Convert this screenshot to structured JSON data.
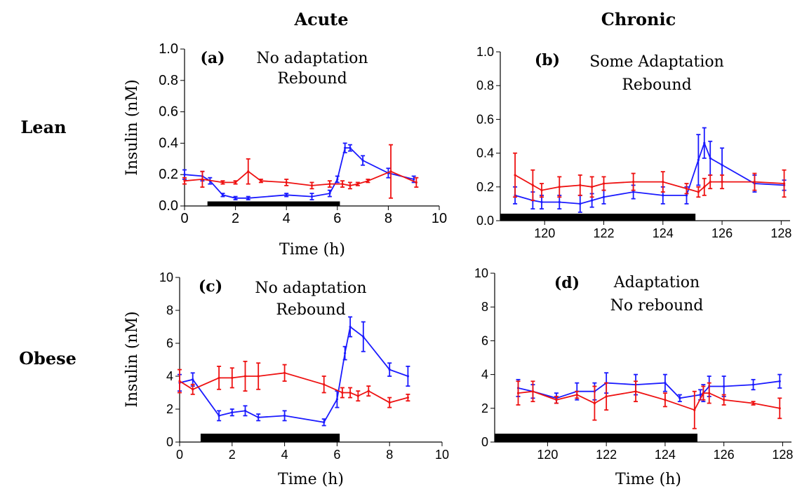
{
  "headers": {
    "col1": "Acute",
    "col2": "Chronic",
    "row1": "Lean",
    "row2": "Obese"
  },
  "colors": {
    "blue": "#1a1aff",
    "red": "#ee1111",
    "bar": "#000000"
  },
  "chart_data": [
    {
      "id": "a",
      "type": "line",
      "panel_label": "(a)",
      "annotation_line1": "No adaptation",
      "annotation_line2": "Rebound",
      "xlabel": "Time (h)",
      "ylabel": "Insulin (nM)",
      "xlim": [
        0,
        10
      ],
      "ylim": [
        0,
        1.0
      ],
      "xticks": [
        0,
        2,
        4,
        6,
        8,
        10
      ],
      "yticks": [
        0.0,
        0.2,
        0.4,
        0.6,
        0.8,
        1.0
      ],
      "xtick_labels": [
        "0",
        "2",
        "4",
        "6",
        "8",
        "10"
      ],
      "ytick_labels": [
        "0.0",
        "0.2",
        "0.4",
        "0.6",
        "0.8",
        "1.0"
      ],
      "treatment_bar": [
        0.9,
        6.1
      ],
      "series": [
        {
          "color": "blue",
          "points": [
            [
              0,
              0.2,
              0.03
            ],
            [
              0.7,
              0.19,
              0.03
            ],
            [
              1.0,
              0.16,
              0.02
            ],
            [
              1.5,
              0.07,
              0.01
            ],
            [
              2.0,
              0.05,
              0.01
            ],
            [
              2.5,
              0.05,
              0.01
            ],
            [
              4.0,
              0.07,
              0.01
            ],
            [
              5.0,
              0.06,
              0.02
            ],
            [
              5.7,
              0.08,
              0.02
            ],
            [
              6.0,
              0.17,
              0.02
            ],
            [
              6.3,
              0.37,
              0.03
            ],
            [
              6.5,
              0.37,
              0.02
            ],
            [
              7.0,
              0.29,
              0.03
            ],
            [
              8.0,
              0.21,
              0.03
            ],
            [
              9.0,
              0.17,
              0.02
            ]
          ]
        },
        {
          "color": "red",
          "points": [
            [
              0,
              0.16,
              0.02
            ],
            [
              0.7,
              0.17,
              0.05
            ],
            [
              1.5,
              0.15,
              0.01
            ],
            [
              2.0,
              0.15,
              0.01
            ],
            [
              2.5,
              0.22,
              0.08
            ],
            [
              3.0,
              0.16,
              0.01
            ],
            [
              4.0,
              0.15,
              0.02
            ],
            [
              5.0,
              0.13,
              0.02
            ],
            [
              5.7,
              0.14,
              0.02
            ],
            [
              6.2,
              0.14,
              0.02
            ],
            [
              6.5,
              0.13,
              0.02
            ],
            [
              6.8,
              0.14,
              0.01
            ],
            [
              7.2,
              0.16,
              0.01
            ],
            [
              8.1,
              0.22,
              0.17
            ],
            [
              9.1,
              0.15,
              0.03
            ]
          ]
        }
      ]
    },
    {
      "id": "b",
      "type": "line",
      "panel_label": "(b)",
      "annotation_line1": "Some Adaptation",
      "annotation_line2": "Rebound",
      "xlabel": "",
      "ylabel": "",
      "xlim": [
        118.5,
        128.3
      ],
      "ylim": [
        0,
        1.0
      ],
      "xticks": [
        120,
        122,
        124,
        126,
        128
      ],
      "yticks": [
        0.0,
        0.2,
        0.4,
        0.6,
        0.8,
        1.0
      ],
      "xtick_labels": [
        "120",
        "122",
        "124",
        "126",
        "128"
      ],
      "ytick_labels": [
        "0.0",
        "0.2",
        "0.4",
        "0.6",
        "0.8",
        "1.0"
      ],
      "treatment_bar": [
        118.5,
        125.1
      ],
      "series": [
        {
          "color": "blue",
          "points": [
            [
              119.0,
              0.15,
              0.05
            ],
            [
              119.6,
              0.12,
              0.05
            ],
            [
              119.9,
              0.11,
              0.04
            ],
            [
              120.5,
              0.11,
              0.04
            ],
            [
              121.2,
              0.1,
              0.05
            ],
            [
              121.6,
              0.12,
              0.04
            ],
            [
              122.0,
              0.14,
              0.04
            ],
            [
              123.0,
              0.17,
              0.04
            ],
            [
              124.0,
              0.15,
              0.05
            ],
            [
              124.8,
              0.15,
              0.05
            ],
            [
              125.2,
              0.36,
              0.15
            ],
            [
              125.4,
              0.46,
              0.09
            ],
            [
              125.6,
              0.37,
              0.1
            ],
            [
              126.0,
              0.33,
              0.1
            ],
            [
              127.1,
              0.22,
              0.05
            ],
            [
              128.1,
              0.21,
              0.03
            ]
          ]
        },
        {
          "color": "red",
          "points": [
            [
              119.0,
              0.27,
              0.13
            ],
            [
              119.6,
              0.21,
              0.09
            ],
            [
              119.9,
              0.18,
              0.04
            ],
            [
              120.5,
              0.2,
              0.06
            ],
            [
              121.2,
              0.21,
              0.06
            ],
            [
              121.6,
              0.2,
              0.06
            ],
            [
              122.0,
              0.22,
              0.04
            ],
            [
              123.0,
              0.23,
              0.05
            ],
            [
              124.0,
              0.23,
              0.06
            ],
            [
              124.8,
              0.19,
              0.03
            ],
            [
              125.2,
              0.17,
              0.03
            ],
            [
              125.4,
              0.2,
              0.05
            ],
            [
              125.6,
              0.23,
              0.04
            ],
            [
              126.0,
              0.23,
              0.04
            ],
            [
              127.1,
              0.23,
              0.05
            ],
            [
              128.1,
              0.22,
              0.08
            ]
          ]
        }
      ]
    },
    {
      "id": "c",
      "type": "line",
      "panel_label": "(c)",
      "annotation_line1": "No adaptation",
      "annotation_line2": "Rebound",
      "xlabel": "Time (h)",
      "ylabel": "Insulin (nM)",
      "xlim": [
        0,
        10
      ],
      "ylim": [
        0,
        10
      ],
      "xticks": [
        0,
        2,
        4,
        6,
        8,
        10
      ],
      "yticks": [
        0,
        2,
        4,
        6,
        8,
        10
      ],
      "xtick_labels": [
        "0",
        "2",
        "4",
        "6",
        "8",
        "10"
      ],
      "ytick_labels": [
        "0",
        "2",
        "4",
        "6",
        "8",
        "10"
      ],
      "treatment_bar": [
        0.8,
        6.1
      ],
      "series": [
        {
          "color": "blue",
          "points": [
            [
              0,
              3.6,
              0.5
            ],
            [
              0.5,
              3.8,
              0.4
            ],
            [
              1.5,
              1.6,
              0.3
            ],
            [
              2.0,
              1.8,
              0.2
            ],
            [
              2.5,
              1.9,
              0.3
            ],
            [
              3.0,
              1.5,
              0.2
            ],
            [
              4.0,
              1.6,
              0.3
            ],
            [
              5.5,
              1.2,
              0.2
            ],
            [
              6.0,
              2.6,
              0.5
            ],
            [
              6.3,
              5.4,
              0.4
            ],
            [
              6.5,
              7.0,
              0.6
            ],
            [
              7.0,
              6.4,
              0.9
            ],
            [
              8.0,
              4.4,
              0.4
            ],
            [
              8.7,
              4.0,
              0.6
            ]
          ]
        },
        {
          "color": "red",
          "points": [
            [
              0,
              3.7,
              0.7
            ],
            [
              0.5,
              3.2,
              0.3
            ],
            [
              1.5,
              3.9,
              0.7
            ],
            [
              2.0,
              3.9,
              0.6
            ],
            [
              2.5,
              4.0,
              0.9
            ],
            [
              3.0,
              4.0,
              0.8
            ],
            [
              4.0,
              4.2,
              0.5
            ],
            [
              5.5,
              3.5,
              0.5
            ],
            [
              6.2,
              3.0,
              0.3
            ],
            [
              6.5,
              3.0,
              0.3
            ],
            [
              6.8,
              2.8,
              0.3
            ],
            [
              7.2,
              3.1,
              0.3
            ],
            [
              8.0,
              2.4,
              0.3
            ],
            [
              8.7,
              2.7,
              0.2
            ]
          ]
        }
      ]
    },
    {
      "id": "d",
      "type": "line",
      "panel_label": "(d)",
      "annotation_line1": "Adaptation",
      "annotation_line2": "No rebound",
      "xlabel": "Time (h)",
      "ylabel": "",
      "xlim": [
        118.2,
        128.3
      ],
      "ylim": [
        0,
        10
      ],
      "xticks": [
        120,
        122,
        124,
        126,
        128
      ],
      "yticks": [
        0,
        2,
        4,
        6,
        8,
        10
      ],
      "xtick_labels": [
        "120",
        "122",
        "124",
        "126",
        "128"
      ],
      "ytick_labels": [
        "0",
        "2",
        "4",
        "6",
        "8",
        "10"
      ],
      "treatment_bar": [
        118.2,
        125.1
      ],
      "series": [
        {
          "color": "blue",
          "points": [
            [
              119.0,
              3.2,
              0.5
            ],
            [
              119.5,
              3.0,
              0.4
            ],
            [
              120.3,
              2.6,
              0.3
            ],
            [
              121.0,
              3.0,
              0.5
            ],
            [
              121.6,
              3.0,
              0.5
            ],
            [
              122.0,
              3.5,
              0.6
            ],
            [
              123.0,
              3.4,
              0.6
            ],
            [
              124.0,
              3.5,
              0.5
            ],
            [
              124.5,
              2.6,
              0.2
            ],
            [
              125.2,
              2.8,
              0.3
            ],
            [
              125.3,
              2.9,
              0.5
            ],
            [
              125.5,
              3.3,
              0.6
            ],
            [
              126.0,
              3.3,
              0.6
            ],
            [
              127.0,
              3.4,
              0.3
            ],
            [
              127.9,
              3.6,
              0.4
            ]
          ]
        },
        {
          "color": "red",
          "points": [
            [
              119.0,
              2.9,
              0.7
            ],
            [
              119.5,
              3.0,
              0.6
            ],
            [
              120.3,
              2.5,
              0.2
            ],
            [
              121.0,
              2.8,
              0.2
            ],
            [
              121.6,
              2.3,
              1.0
            ],
            [
              122.0,
              2.7,
              0.8
            ],
            [
              123.0,
              3.0,
              0.6
            ],
            [
              124.0,
              2.5,
              0.4
            ],
            [
              125.0,
              1.9,
              1.1
            ],
            [
              125.3,
              2.9,
              0.4
            ],
            [
              125.5,
              2.9,
              0.6
            ],
            [
              126.0,
              2.5,
              0.3
            ],
            [
              127.0,
              2.3,
              0.1
            ],
            [
              127.9,
              2.0,
              0.6
            ]
          ]
        }
      ]
    }
  ]
}
